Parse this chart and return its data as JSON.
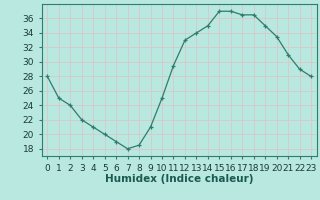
{
  "x": [
    0,
    1,
    2,
    3,
    4,
    5,
    6,
    7,
    8,
    9,
    10,
    11,
    12,
    13,
    14,
    15,
    16,
    17,
    18,
    19,
    20,
    21,
    22,
    23
  ],
  "y": [
    28,
    25,
    24,
    22,
    21,
    20,
    19,
    18,
    18.5,
    21,
    25,
    29.5,
    33,
    34,
    35,
    37,
    37,
    36.5,
    36.5,
    35,
    33.5,
    31,
    29,
    28
  ],
  "line_color": "#2e7d6e",
  "marker": "+",
  "marker_color": "#2e7d6e",
  "bg_color": "#b8e8df",
  "grid_color": "#d8c8c8",
  "xlabel": "Humidex (Indice chaleur)",
  "ylim": [
    17,
    38
  ],
  "xlim": [
    -0.5,
    23.5
  ],
  "yticks": [
    18,
    20,
    22,
    24,
    26,
    28,
    30,
    32,
    34,
    36
  ],
  "xticks": [
    0,
    1,
    2,
    3,
    4,
    5,
    6,
    7,
    8,
    9,
    10,
    11,
    12,
    13,
    14,
    15,
    16,
    17,
    18,
    19,
    20,
    21,
    22,
    23
  ],
  "xlabel_fontsize": 7.5,
  "tick_fontsize": 6.5
}
